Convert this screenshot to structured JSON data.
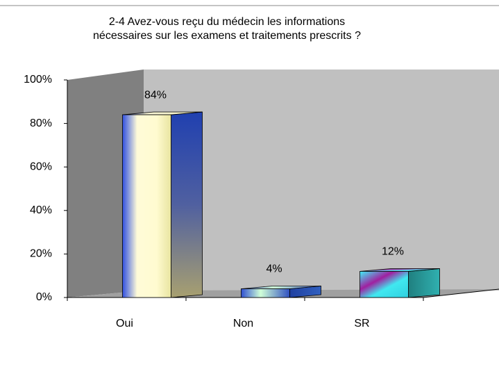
{
  "chart_data": {
    "type": "bar3d",
    "title": [
      "2-4 Avez-vous reçu du médecin les informations",
      "nécessaires sur les examens et traitements prescrits ?"
    ],
    "categories": [
      "Oui",
      "Non",
      "SR"
    ],
    "values": [
      84,
      4,
      12
    ],
    "value_labels": [
      "84%",
      "4%",
      "12%"
    ],
    "ylim": [
      0,
      100
    ],
    "yticks": [
      {
        "value": 0,
        "label": "0%"
      },
      {
        "value": 20,
        "label": "20%"
      },
      {
        "value": 40,
        "label": "40%"
      },
      {
        "value": 60,
        "label": "60%"
      },
      {
        "value": 80,
        "label": "80%"
      },
      {
        "value": 100,
        "label": "100%"
      }
    ]
  }
}
